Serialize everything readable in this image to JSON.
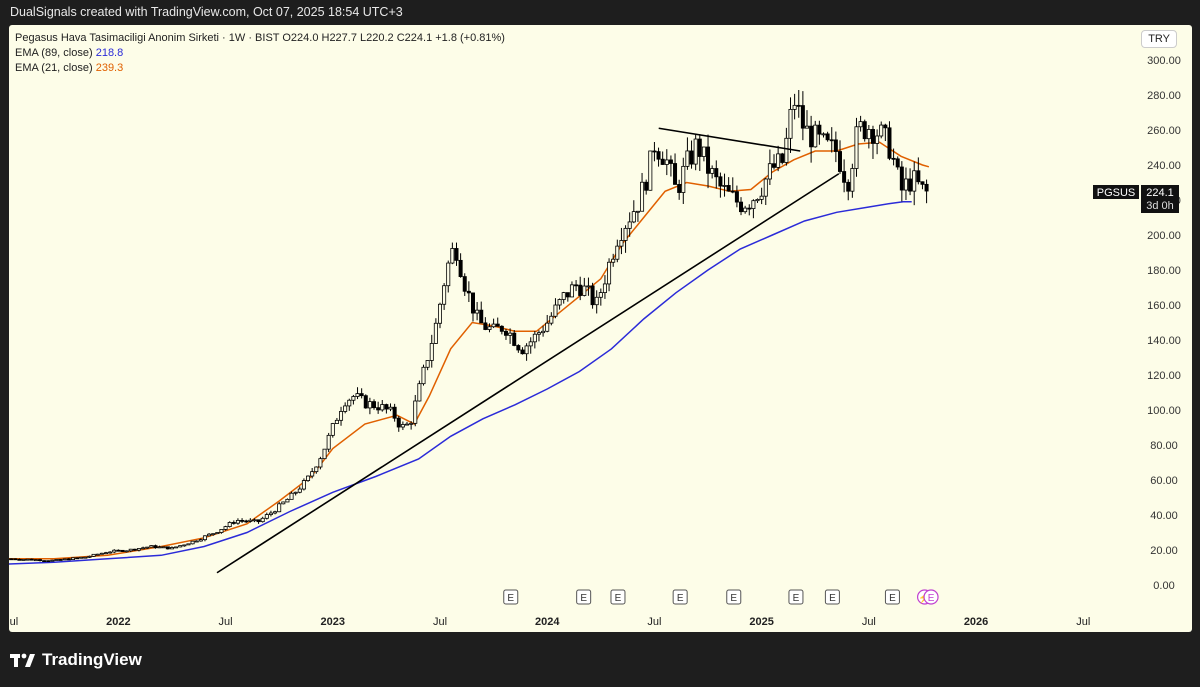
{
  "header": {
    "created": "DualSignals created with TradingView.com, Oct 07, 2025 18:54 UTC+3"
  },
  "legend": {
    "symbol_line": "Pegasus Hava Tasimaciligi Anonim Sirketi · 1W · BIST  O224.0  H227.7  L220.2  C224.1  +1.8 (+0.81%)",
    "ema89_label": "EMA (89, close)",
    "ema89_value": "218.8",
    "ema21_label": "EMA (21, close)",
    "ema21_value": "239.3"
  },
  "currency": "TRY",
  "price_tag": {
    "symbol": "PGSUS",
    "price": "224.1",
    "countdown": "3d 0h"
  },
  "brand": "TradingView",
  "colors": {
    "ema89": "#2b2bd8",
    "ema21": "#e06000",
    "candle": "#000000",
    "background": "#fdfde8"
  },
  "chart_data": {
    "type": "candlestick",
    "timeframe": "1W",
    "y_range": [
      0,
      300
    ],
    "y_ticks": [
      0,
      20,
      40,
      60,
      80,
      100,
      120,
      140,
      160,
      180,
      200,
      220,
      240,
      260,
      280,
      300
    ],
    "y_tick_labels": [
      "0.00",
      "20.00",
      "40.00",
      "60.00",
      "80.00",
      "100.00",
      "120.00",
      "140.00",
      "160.00",
      "180.00",
      "200.00",
      "220.00",
      "240.00",
      "260.00",
      "280.00",
      "300.00"
    ],
    "x_labels": [
      "Jul",
      "2022",
      "Jul",
      "2023",
      "Jul",
      "2024",
      "Jul",
      "2025",
      "Jul",
      "2026",
      "Jul"
    ],
    "x_label_dates": [
      2021.5,
      2022.0,
      2022.5,
      2023.0,
      2023.5,
      2024.0,
      2024.5,
      2025.0,
      2025.5,
      2026.0,
      2026.5
    ],
    "x_range": [
      2021.49,
      2026.55
    ],
    "price_path": [
      [
        2021.5,
        15
      ],
      [
        2021.7,
        14
      ],
      [
        2021.85,
        16
      ],
      [
        2021.95,
        19
      ],
      [
        2022.05,
        20
      ],
      [
        2022.15,
        22
      ],
      [
        2022.25,
        21
      ],
      [
        2022.35,
        25
      ],
      [
        2022.45,
        30
      ],
      [
        2022.55,
        37
      ],
      [
        2022.65,
        36
      ],
      [
        2022.72,
        42
      ],
      [
        2022.8,
        50
      ],
      [
        2022.88,
        60
      ],
      [
        2022.95,
        75
      ],
      [
        2023.0,
        90
      ],
      [
        2023.05,
        105
      ],
      [
        2023.1,
        108
      ],
      [
        2023.15,
        104
      ],
      [
        2023.22,
        102
      ],
      [
        2023.28,
        98
      ],
      [
        2023.32,
        90
      ],
      [
        2023.36,
        92
      ],
      [
        2023.42,
        120
      ],
      [
        2023.48,
        148
      ],
      [
        2023.53,
        180
      ],
      [
        2023.57,
        195
      ],
      [
        2023.62,
        170
      ],
      [
        2023.68,
        150
      ],
      [
        2023.75,
        145
      ],
      [
        2023.8,
        148
      ],
      [
        2023.88,
        135
      ],
      [
        2023.93,
        140
      ],
      [
        2024.0,
        150
      ],
      [
        2024.08,
        165
      ],
      [
        2024.14,
        172
      ],
      [
        2024.18,
        168
      ],
      [
        2024.23,
        160
      ],
      [
        2024.28,
        180
      ],
      [
        2024.33,
        200
      ],
      [
        2024.38,
        210
      ],
      [
        2024.43,
        220
      ],
      [
        2024.48,
        240
      ],
      [
        2024.5,
        252
      ],
      [
        2024.55,
        245
      ],
      [
        2024.6,
        225
      ],
      [
        2024.65,
        240
      ],
      [
        2024.7,
        252
      ],
      [
        2024.75,
        238
      ],
      [
        2024.8,
        228
      ],
      [
        2024.85,
        222
      ],
      [
        2024.9,
        218
      ],
      [
        2024.95,
        220
      ],
      [
        2025.0,
        228
      ],
      [
        2025.05,
        238
      ],
      [
        2025.1,
        242
      ],
      [
        2025.15,
        278
      ],
      [
        2025.2,
        260
      ],
      [
        2025.25,
        255
      ],
      [
        2025.3,
        250
      ],
      [
        2025.35,
        248
      ],
      [
        2025.4,
        230
      ],
      [
        2025.45,
        260
      ],
      [
        2025.5,
        262
      ],
      [
        2025.55,
        258
      ],
      [
        2025.6,
        250
      ],
      [
        2025.65,
        225
      ],
      [
        2025.7,
        232
      ],
      [
        2025.76,
        224
      ]
    ],
    "series": [
      {
        "name": "EMA (89, close)",
        "color": "#2b2bd8",
        "points": [
          [
            2021.49,
            12
          ],
          [
            2021.7,
            13
          ],
          [
            2021.95,
            15
          ],
          [
            2022.2,
            17
          ],
          [
            2022.4,
            22
          ],
          [
            2022.6,
            30
          ],
          [
            2022.8,
            42
          ],
          [
            2023.0,
            53
          ],
          [
            2023.2,
            62
          ],
          [
            2023.4,
            72
          ],
          [
            2023.55,
            85
          ],
          [
            2023.7,
            95
          ],
          [
            2023.85,
            103
          ],
          [
            2024.0,
            112
          ],
          [
            2024.15,
            122
          ],
          [
            2024.3,
            135
          ],
          [
            2024.45,
            152
          ],
          [
            2024.6,
            167
          ],
          [
            2024.75,
            180
          ],
          [
            2024.9,
            192
          ],
          [
            2025.05,
            200
          ],
          [
            2025.2,
            208
          ],
          [
            2025.35,
            213
          ],
          [
            2025.5,
            216
          ],
          [
            2025.6,
            218
          ],
          [
            2025.66,
            219
          ],
          [
            2025.7,
            219
          ]
        ]
      },
      {
        "name": "EMA (21, close)",
        "color": "#e06000",
        "points": [
          [
            2021.49,
            15
          ],
          [
            2021.7,
            15
          ],
          [
            2021.95,
            17
          ],
          [
            2022.2,
            22
          ],
          [
            2022.4,
            27
          ],
          [
            2022.6,
            35
          ],
          [
            2022.75,
            48
          ],
          [
            2022.9,
            62
          ],
          [
            2023.0,
            78
          ],
          [
            2023.15,
            92
          ],
          [
            2023.3,
            97
          ],
          [
            2023.38,
            92
          ],
          [
            2023.45,
            108
          ],
          [
            2023.55,
            135
          ],
          [
            2023.65,
            150
          ],
          [
            2023.75,
            148
          ],
          [
            2023.85,
            145
          ],
          [
            2023.95,
            145
          ],
          [
            2024.05,
            155
          ],
          [
            2024.15,
            165
          ],
          [
            2024.25,
            175
          ],
          [
            2024.35,
            195
          ],
          [
            2024.45,
            210
          ],
          [
            2024.55,
            225
          ],
          [
            2024.65,
            230
          ],
          [
            2024.75,
            228
          ],
          [
            2024.85,
            225
          ],
          [
            2024.95,
            226
          ],
          [
            2025.05,
            236
          ],
          [
            2025.15,
            243
          ],
          [
            2025.25,
            248
          ],
          [
            2025.35,
            248
          ],
          [
            2025.45,
            252
          ],
          [
            2025.55,
            253
          ],
          [
            2025.65,
            245
          ],
          [
            2025.75,
            240
          ],
          [
            2025.78,
            239
          ]
        ]
      }
    ],
    "trendlines": [
      {
        "from": [
          2022.46,
          7
        ],
        "to": [
          2025.36,
          235
        ]
      },
      {
        "from": [
          2024.52,
          261
        ],
        "to": [
          2025.18,
          248
        ]
      }
    ],
    "earnings_markers": [
      2023.83,
      2024.17,
      2024.33,
      2024.62,
      2024.87,
      2025.16,
      2025.33,
      2025.61
    ],
    "event_markers": [
      2025.76,
      2025.79
    ]
  }
}
